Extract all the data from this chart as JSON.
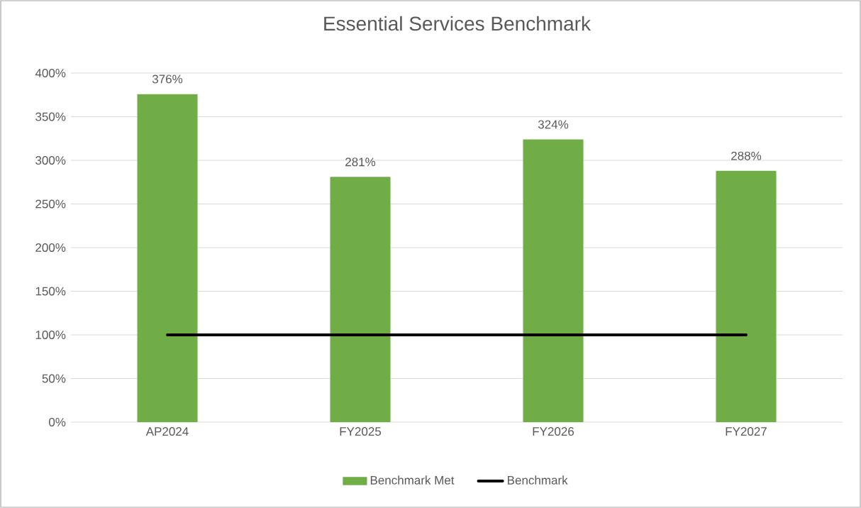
{
  "chart_data": {
    "type": "bar",
    "title": "Essential Services Benchmark",
    "categories": [
      "AP2024",
      "FY2025",
      "FY2026",
      "FY2027"
    ],
    "series": [
      {
        "name": "Benchmark Met",
        "color": "#70ad47",
        "values": [
          376,
          281,
          324,
          288
        ],
        "value_labels": [
          "376%",
          "281%",
          "324%",
          "288%"
        ]
      },
      {
        "name": "Benchmark",
        "type": "line",
        "color": "#000000",
        "values": [
          100,
          100,
          100,
          100
        ]
      }
    ],
    "ylim": [
      0,
      400
    ],
    "yticks": [
      {
        "value": 0,
        "label": "0%"
      },
      {
        "value": 50,
        "label": "50%"
      },
      {
        "value": 100,
        "label": "100%"
      },
      {
        "value": 150,
        "label": "150%"
      },
      {
        "value": 200,
        "label": "200%"
      },
      {
        "value": 250,
        "label": "250%"
      },
      {
        "value": 300,
        "label": "300%"
      },
      {
        "value": 350,
        "label": "350%"
      },
      {
        "value": 400,
        "label": "400%"
      }
    ],
    "grid": "y",
    "legend": "bottom"
  }
}
